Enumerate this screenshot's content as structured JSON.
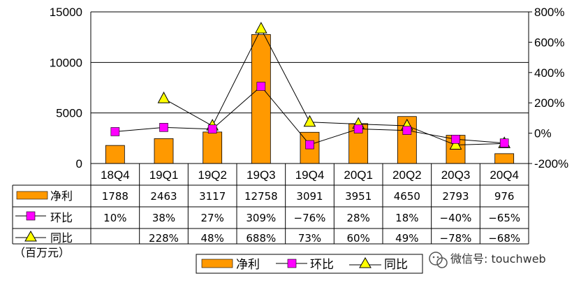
{
  "chart_data": {
    "type": "bar+line",
    "categories": [
      "18Q4",
      "19Q1",
      "19Q2",
      "19Q3",
      "19Q4",
      "20Q1",
      "20Q2",
      "20Q3",
      "20Q4"
    ],
    "left_axis": {
      "ylim": [
        0,
        15000
      ],
      "ticks": [
        "0",
        "5000",
        "10000",
        "15000"
      ]
    },
    "right_axis": {
      "ylim": [
        -200,
        800
      ],
      "ticks": [
        "-200%",
        "0%",
        "200%",
        "400%",
        "600%",
        "800%"
      ]
    },
    "series": [
      {
        "name": "净利",
        "kind": "bar",
        "axis": "left",
        "color": "#ff9900",
        "values": [
          1788,
          2463,
          3117,
          12758,
          3091,
          3951,
          4650,
          2793,
          976
        ]
      },
      {
        "name": "环比",
        "kind": "line",
        "axis": "right",
        "marker": "square",
        "color": "#ff00ff",
        "values": [
          10,
          38,
          27,
          309,
          -76,
          28,
          18,
          -40,
          -65
        ]
      },
      {
        "name": "同比",
        "kind": "line",
        "axis": "right",
        "marker": "triangle",
        "color": "#ffff00",
        "values": [
          null,
          228,
          48,
          688,
          73,
          60,
          49,
          -78,
          -68
        ]
      }
    ],
    "table": {
      "rows": [
        {
          "label": "净利",
          "cells": [
            "1788",
            "2463",
            "3117",
            "12758",
            "3091",
            "3951",
            "4650",
            "2793",
            "976"
          ]
        },
        {
          "label": "环比",
          "cells": [
            "10%",
            "38%",
            "27%",
            "309%",
            "−76%",
            "28%",
            "18%",
            "−40%",
            "−65%"
          ]
        },
        {
          "label": "同比",
          "cells": [
            "",
            "228%",
            "48%",
            "688%",
            "73%",
            "60%",
            "49%",
            "−78%",
            "−68%"
          ]
        }
      ]
    },
    "unit_label": "（百万元）",
    "legend": [
      "净利",
      "环比",
      "同比"
    ],
    "grid": true
  },
  "watermark": {
    "text": "微信号: touchweb",
    "icon": "wechat-icon"
  }
}
